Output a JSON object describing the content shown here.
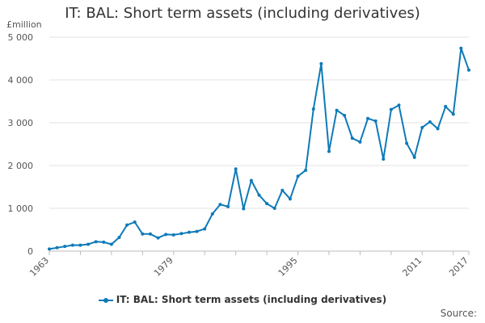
{
  "chart_data": {
    "type": "line",
    "title": "IT: BAL: Short term assets (including derivatives)",
    "ylabel": "£million",
    "xlabel": "",
    "ylim": [
      0,
      5000
    ],
    "xlim": [
      1963,
      2017
    ],
    "yticks": [
      0,
      1000,
      2000,
      3000,
      4000,
      5000
    ],
    "ytick_labels": [
      "0",
      "1 000",
      "2 000",
      "3 000",
      "4 000",
      "5 000"
    ],
    "xticks": [
      1963,
      1979,
      1995,
      2011,
      2017
    ],
    "xtick_labels": [
      "1963",
      "1979",
      "1995",
      "2011",
      "2017"
    ],
    "grid": "horizontal",
    "legend_position": "bottom",
    "series": [
      {
        "name": "IT: BAL: Short term assets (including derivatives)",
        "color": "#0e7ab8",
        "x": [
          1963,
          1964,
          1965,
          1966,
          1967,
          1968,
          1969,
          1970,
          1971,
          1972,
          1973,
          1974,
          1975,
          1976,
          1977,
          1978,
          1979,
          1980,
          1981,
          1982,
          1983,
          1984,
          1985,
          1986,
          1987,
          1988,
          1989,
          1990,
          1991,
          1992,
          1993,
          1994,
          1995,
          1996,
          1997,
          1998,
          1999,
          2000,
          2001,
          2002,
          2003,
          2004,
          2005,
          2006,
          2007,
          2008,
          2009,
          2010,
          2011,
          2012,
          2013,
          2014,
          2015,
          2016,
          2017
        ],
        "values": [
          50,
          80,
          110,
          140,
          140,
          160,
          220,
          210,
          160,
          320,
          610,
          680,
          400,
          400,
          310,
          390,
          380,
          410,
          440,
          460,
          520,
          870,
          1090,
          1040,
          1920,
          990,
          1650,
          1310,
          1110,
          1000,
          1420,
          1220,
          1750,
          1890,
          3320,
          4380,
          2330,
          3290,
          3170,
          2640,
          2550,
          3100,
          3040,
          2150,
          3310,
          3410,
          2520,
          2190,
          2890,
          3020,
          2860,
          3380,
          3200,
          4740,
          4230
        ]
      }
    ]
  },
  "source_label": "Source:"
}
